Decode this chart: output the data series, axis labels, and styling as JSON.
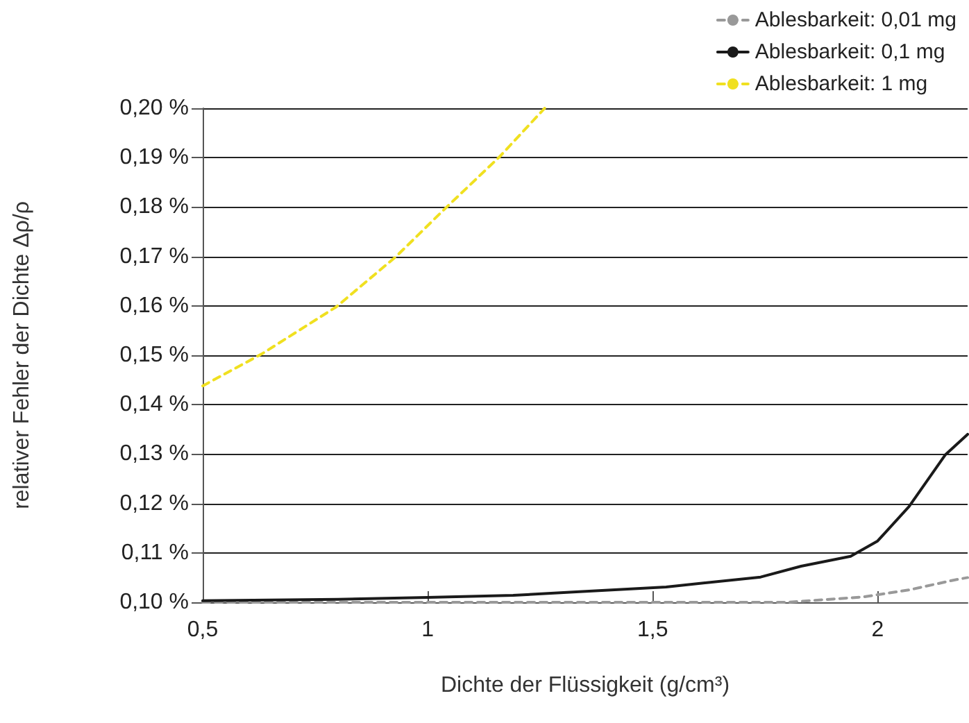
{
  "chart_data": {
    "type": "line",
    "xlabel": "Dichte der Flüssigkeit (g/cm³)",
    "ylabel": "relativer Fehler der Dichte Δρ/ρ",
    "xlim": [
      0.5,
      2.2
    ],
    "xticks": [
      {
        "value": 0.5,
        "label": "0,5"
      },
      1,
      {
        "value": 1.5,
        "label": "1,5"
      },
      2
    ],
    "ylim": [
      0.1,
      0.2
    ],
    "yticks": [
      {
        "value": 0.1,
        "label": "0,10 %"
      },
      {
        "value": 0.11,
        "label": "0,11 %"
      },
      {
        "value": 0.12,
        "label": "0,12 %"
      },
      {
        "value": 0.13,
        "label": "0,13 %"
      },
      {
        "value": 0.14,
        "label": "0,14 %"
      },
      {
        "value": 0.15,
        "label": "0,15 %"
      },
      {
        "value": 0.16,
        "label": "0,16 %"
      },
      {
        "value": 0.17,
        "label": "0,17 %"
      },
      {
        "value": 0.18,
        "label": "0,18 %"
      },
      {
        "value": 0.19,
        "label": "0,19 %"
      },
      {
        "value": 0.2,
        "label": "0,20 %"
      }
    ],
    "grid": "y",
    "legend": "top right",
    "marker": "none",
    "series": [
      {
        "name": "Ablesbarkeit: 0,01 mg",
        "color": "#999999",
        "line_style": "dashed",
        "x": [
          0.5,
          1.0,
          1.5,
          1.8,
          1.97,
          2.07,
          2.17,
          2.2
        ],
        "values": [
          0.1,
          0.1,
          0.1,
          0.1,
          0.1011,
          0.1025,
          0.1045,
          0.105
        ]
      },
      {
        "name": "Ablesbarkeit: 0,1 mg",
        "color": "#1a1a1a",
        "line_style": "solid",
        "x": [
          0.5,
          0.8,
          1.0,
          1.19,
          1.33,
          1.53,
          1.74,
          1.83,
          1.94,
          2.0,
          2.07,
          2.15,
          2.2
        ],
        "values": [
          0.1003,
          0.1006,
          0.101,
          0.1014,
          0.1021,
          0.1031,
          0.1051,
          0.1073,
          0.1093,
          0.1124,
          0.1194,
          0.1298,
          0.134
        ]
      },
      {
        "name": "Ablesbarkeit: 1 mg",
        "color": "#f0e020",
        "line_style": "dashed",
        "x": [
          0.5,
          0.632,
          0.797,
          0.93,
          1.04,
          1.16,
          1.26
        ],
        "values": [
          0.1438,
          0.1503,
          0.1598,
          0.17,
          0.1798,
          0.1902,
          0.2
        ]
      }
    ]
  }
}
